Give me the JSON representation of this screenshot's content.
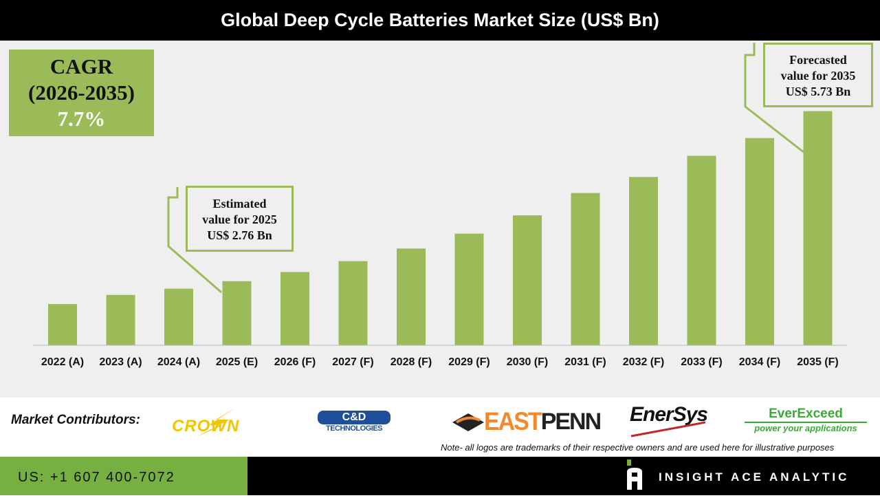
{
  "header": {
    "title": "Global Deep Cycle Batteries Market Size (US$ Bn)"
  },
  "cagr": {
    "label": "CAGR",
    "period": "(2026-2035)",
    "value": "7.7%"
  },
  "callouts": {
    "estimated": {
      "line1": "Estimated",
      "line2": "value for 2025",
      "line3": "US$ 2.76 Bn"
    },
    "forecast": {
      "line1": "Forecasted",
      "line2": "value for 2035",
      "line3": "US$ 5.73 Bn"
    }
  },
  "chart_data": {
    "type": "bar",
    "title": "Global Deep Cycle Batteries Market Size (US$ Bn)",
    "categories": [
      "2022 (A)",
      "2023 (A)",
      "2024 (A)",
      "2025 (E)",
      "2026 (F)",
      "2027 (F)",
      "2028 (F)",
      "2029 (F)",
      "2030 (F)",
      "2031 (F)",
      "2032 (F)",
      "2033 (F)",
      "2034 (F)",
      "2035 (F)"
    ],
    "values": [
      2.36,
      2.52,
      2.63,
      2.76,
      2.92,
      3.11,
      3.33,
      3.59,
      3.91,
      4.3,
      4.58,
      4.95,
      5.26,
      5.73
    ],
    "ylim": [
      1.64,
      6.95
    ],
    "grid": false,
    "color": "#9bbb59"
  },
  "contributors": {
    "label": "Market Contributors:",
    "logos": [
      "CROWN",
      "C&D TECHNOLOGIES",
      "EASTPENN",
      "EnerSys",
      "EverExceed",
      "power your applications"
    ]
  },
  "note": "Note- all logos are trademarks of their respective owners and are used here for illustrative purposes",
  "footer": {
    "phone": "US: +1 607 400-7072",
    "brand": "INSIGHT ACE ANALYTIC"
  }
}
